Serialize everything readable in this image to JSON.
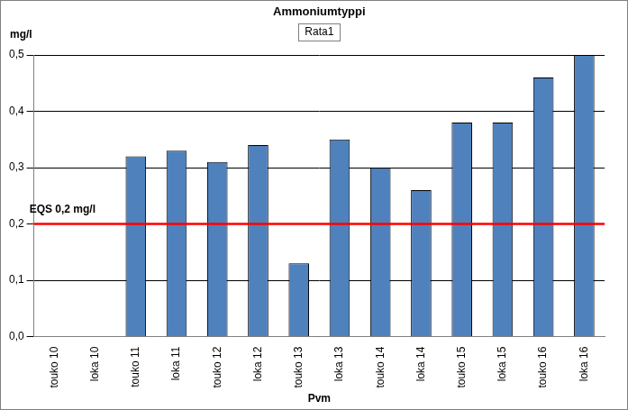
{
  "chart_data": {
    "type": "bar",
    "title": "Ammoniumtyppi",
    "subtitle": "Rata1",
    "x_label": "Pvm",
    "y_label": "mg/l",
    "categories": [
      "touko 10",
      "loka 10",
      "touko 11",
      "loka 11",
      "touko 12",
      "loka 12",
      "touko 13",
      "loka 13",
      "touko 14",
      "loka 14",
      "touko 15",
      "loka 15",
      "touko 16",
      "loka 16"
    ],
    "values": [
      null,
      null,
      0.32,
      0.33,
      0.31,
      0.34,
      0.13,
      0.35,
      0.3,
      0.26,
      0.38,
      0.38,
      0.46,
      0.5
    ],
    "color": "#4f81bd",
    "ylim": [
      0,
      0.5
    ],
    "yticks": [
      {
        "value": 0,
        "label": "0,0"
      },
      {
        "value": 0.1,
        "label": "0,1"
      },
      {
        "value": 0.2,
        "label": "0,2"
      },
      {
        "value": 0.3,
        "label": "0,3"
      },
      {
        "value": 0.4,
        "label": "0,4"
      },
      {
        "value": 0.5,
        "label": "0,5"
      }
    ],
    "grid": true,
    "annotations": [
      {
        "text": "EQS 0,2 mg/l",
        "y": 0.2,
        "color": "#ff0000"
      }
    ]
  }
}
